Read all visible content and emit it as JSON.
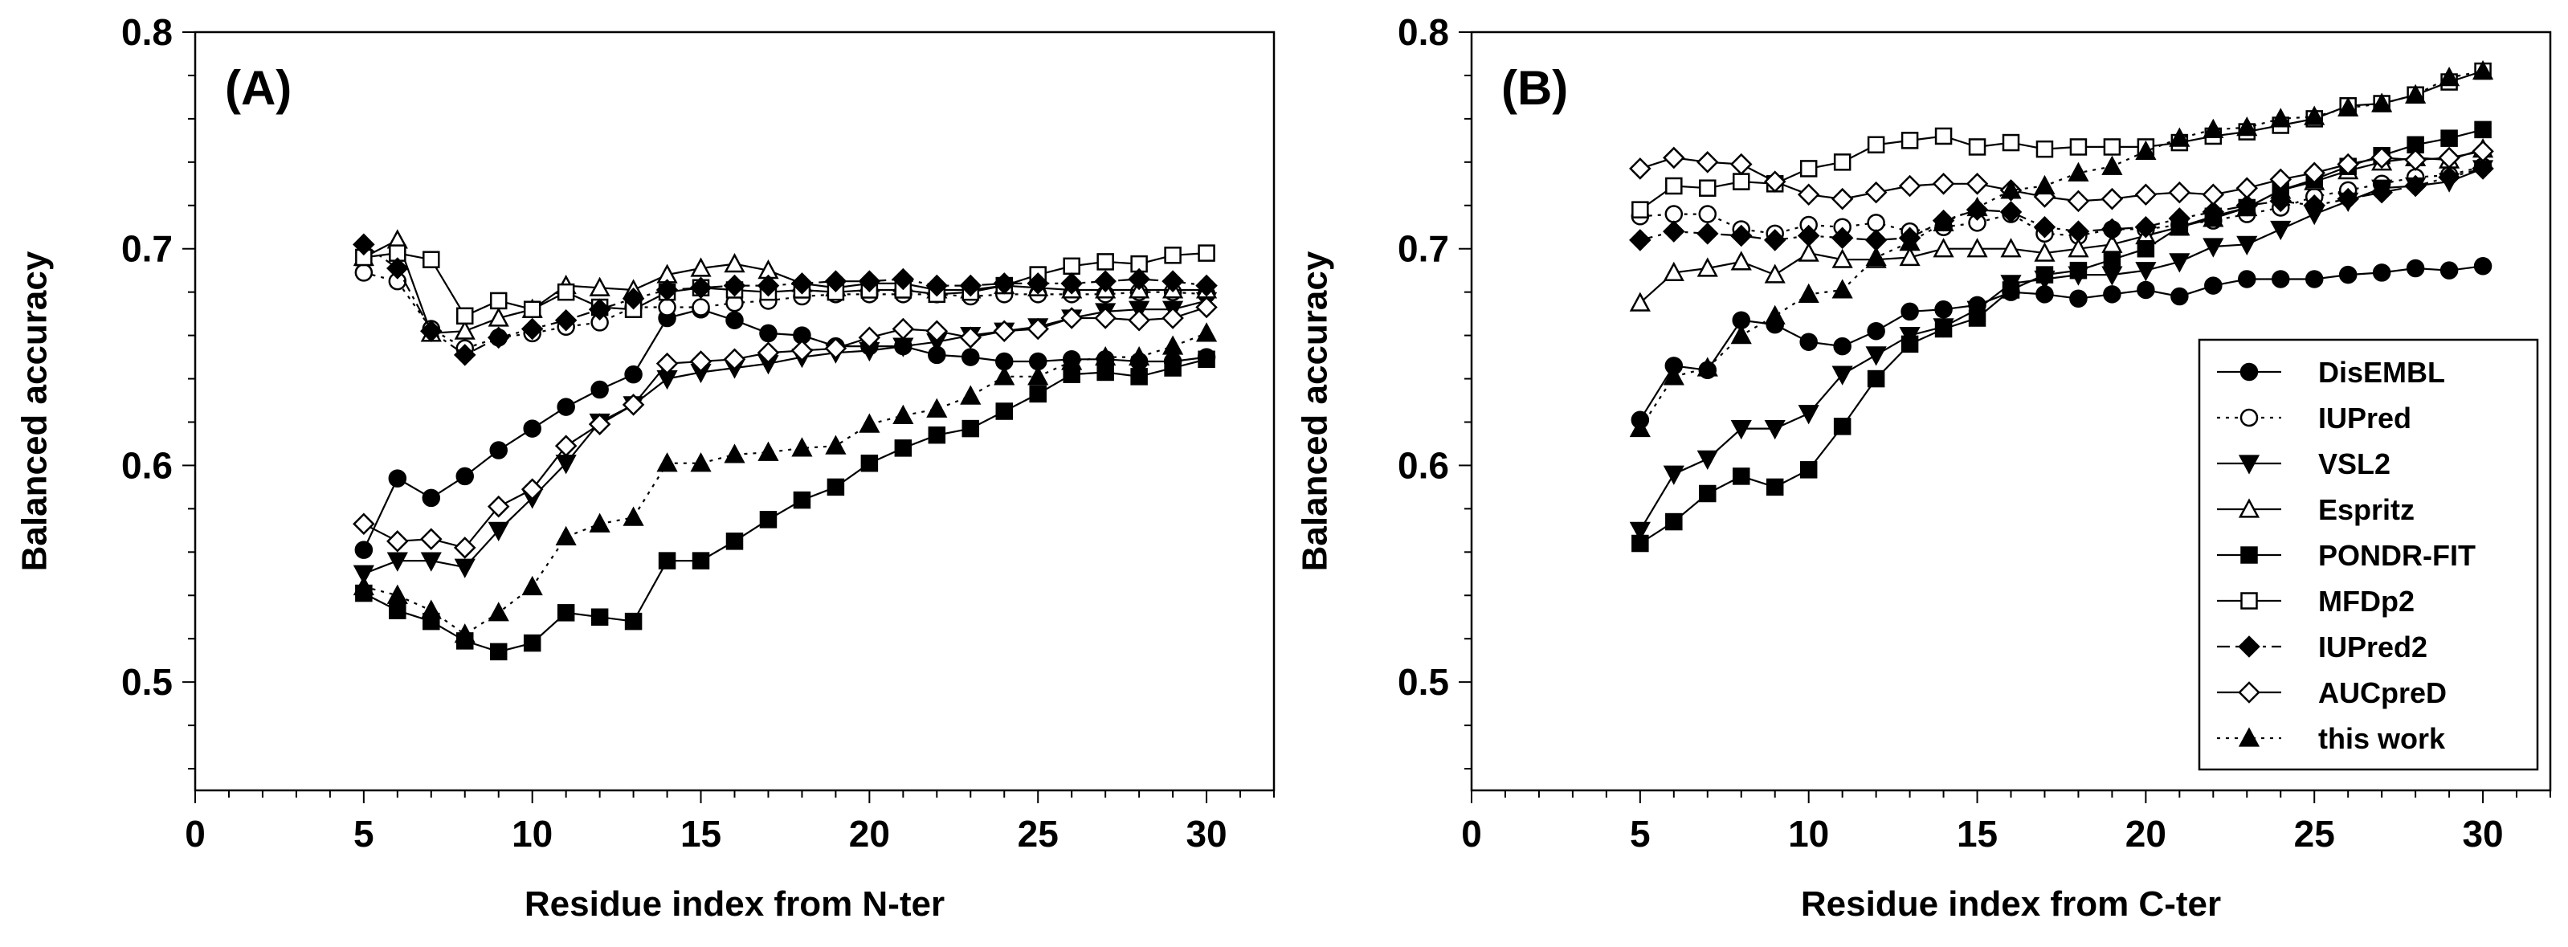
{
  "chart_data": [
    {
      "type": "line",
      "panel_label": "(A)",
      "xlabel": "Residue index from N-ter",
      "ylabel": "Balanced accuracy",
      "xlim": [
        0,
        32
      ],
      "ylim": [
        0.45,
        0.8
      ],
      "x_ticks": [
        "0",
        "5",
        "10",
        "15",
        "20",
        "25",
        "30"
      ],
      "y_ticks": [
        "0.5",
        "0.6",
        "0.7",
        "0.8"
      ],
      "grid": false,
      "x": [
        5,
        6,
        7,
        8,
        9,
        10,
        11,
        12,
        13,
        14,
        15,
        16,
        17,
        18,
        19,
        20,
        21,
        22,
        23,
        24,
        25,
        26,
        27,
        28,
        29,
        30
      ],
      "series": [
        {
          "name": "DisEMBL",
          "values": [
            0.561,
            0.594,
            0.585,
            0.595,
            0.607,
            0.617,
            0.627,
            0.635,
            0.642,
            0.668,
            0.672,
            0.667,
            0.661,
            0.66,
            0.655,
            0.655,
            0.655,
            0.651,
            0.65,
            0.648,
            0.648,
            0.649,
            0.649,
            0.648,
            0.648,
            0.65
          ]
        },
        {
          "name": "IUPred",
          "values": [
            0.689,
            0.685,
            0.663,
            0.654,
            0.659,
            0.661,
            0.664,
            0.666,
            0.673,
            0.673,
            0.673,
            0.675,
            0.676,
            0.678,
            0.679,
            0.679,
            0.679,
            0.679,
            0.678,
            0.679,
            0.679,
            0.679,
            0.679,
            0.68,
            0.68,
            0.679
          ]
        },
        {
          "name": "VSL2",
          "values": [
            0.55,
            0.556,
            0.556,
            0.553,
            0.57,
            0.585,
            0.601,
            0.62,
            0.628,
            0.64,
            0.643,
            0.645,
            0.647,
            0.65,
            0.652,
            0.653,
            0.655,
            0.657,
            0.66,
            0.662,
            0.664,
            0.668,
            0.671,
            0.672,
            0.672,
            0.676
          ]
        },
        {
          "name": "Espritz",
          "values": [
            0.696,
            0.704,
            0.661,
            0.662,
            0.668,
            0.672,
            0.683,
            0.682,
            0.681,
            0.688,
            0.691,
            0.693,
            0.69,
            0.684,
            0.682,
            0.684,
            0.684,
            0.681,
            0.681,
            0.683,
            0.682,
            0.681,
            0.681,
            0.681,
            0.681,
            0.681
          ]
        },
        {
          "name": "PONDR-FIT",
          "values": [
            0.541,
            0.533,
            0.528,
            0.519,
            0.514,
            0.518,
            0.532,
            0.53,
            0.528,
            0.556,
            0.556,
            0.565,
            0.575,
            0.584,
            0.59,
            0.601,
            0.608,
            0.614,
            0.617,
            0.625,
            0.633,
            0.642,
            0.643,
            0.641,
            0.645,
            0.649
          ]
        },
        {
          "name": "MFDp2",
          "values": [
            0.696,
            0.698,
            0.695,
            0.669,
            0.676,
            0.672,
            0.68,
            0.673,
            0.672,
            0.68,
            0.682,
            0.681,
            0.68,
            0.681,
            0.68,
            0.681,
            0.681,
            0.679,
            0.68,
            0.683,
            0.688,
            0.692,
            0.694,
            0.693,
            0.697,
            0.698
          ]
        },
        {
          "name": "IUPred2",
          "values": [
            0.702,
            0.691,
            0.662,
            0.651,
            0.659,
            0.663,
            0.667,
            0.672,
            0.677,
            0.681,
            0.682,
            0.683,
            0.683,
            0.684,
            0.685,
            0.685,
            0.686,
            0.683,
            0.683,
            0.684,
            0.684,
            0.684,
            0.685,
            0.686,
            0.685,
            0.683
          ]
        },
        {
          "name": "AUCpreD",
          "values": [
            0.573,
            0.565,
            0.566,
            0.562,
            0.581,
            0.589,
            0.609,
            0.619,
            0.628,
            0.647,
            0.648,
            0.649,
            0.652,
            0.653,
            0.654,
            0.659,
            0.663,
            0.662,
            0.659,
            0.662,
            0.663,
            0.668,
            0.668,
            0.667,
            0.668,
            0.673
          ]
        },
        {
          "name": "this work",
          "values": [
            0.544,
            0.54,
            0.533,
            0.522,
            0.532,
            0.544,
            0.567,
            0.573,
            0.576,
            0.601,
            0.601,
            0.605,
            0.606,
            0.608,
            0.609,
            0.619,
            0.623,
            0.626,
            0.632,
            0.641,
            0.641,
            0.648,
            0.65,
            0.65,
            0.655,
            0.661
          ]
        }
      ]
    },
    {
      "type": "line",
      "panel_label": "(B)",
      "xlabel": "Residue index from C-ter",
      "ylabel": "Balanced accuracy",
      "xlim": [
        0,
        32
      ],
      "ylim": [
        0.45,
        0.8
      ],
      "x_ticks": [
        "0",
        "5",
        "10",
        "15",
        "20",
        "25",
        "30"
      ],
      "y_ticks": [
        "0.5",
        "0.6",
        "0.7",
        "0.8"
      ],
      "grid": false,
      "legend_position": "bottom-right",
      "x": [
        5,
        6,
        7,
        8,
        9,
        10,
        11,
        12,
        13,
        14,
        15,
        16,
        17,
        18,
        19,
        20,
        21,
        22,
        23,
        24,
        25,
        26,
        27,
        28,
        29,
        30
      ],
      "series": [
        {
          "name": "DisEMBL",
          "values": [
            0.621,
            0.646,
            0.644,
            0.667,
            0.665,
            0.657,
            0.655,
            0.662,
            0.671,
            0.672,
            0.674,
            0.68,
            0.679,
            0.677,
            0.679,
            0.681,
            0.678,
            0.683,
            0.686,
            0.686,
            0.686,
            0.688,
            0.689,
            0.691,
            0.69,
            0.692
          ]
        },
        {
          "name": "IUPred",
          "values": [
            0.715,
            0.716,
            0.716,
            0.709,
            0.707,
            0.711,
            0.71,
            0.712,
            0.708,
            0.71,
            0.712,
            0.716,
            0.707,
            0.706,
            0.709,
            0.709,
            0.711,
            0.713,
            0.716,
            0.719,
            0.724,
            0.727,
            0.73,
            0.733,
            0.734,
            0.738
          ]
        },
        {
          "name": "VSL2",
          "values": [
            0.57,
            0.596,
            0.603,
            0.617,
            0.617,
            0.624,
            0.642,
            0.651,
            0.66,
            0.664,
            0.672,
            0.684,
            0.686,
            0.688,
            0.688,
            0.69,
            0.694,
            0.701,
            0.702,
            0.709,
            0.716,
            0.722,
            0.728,
            0.729,
            0.731,
            0.737
          ]
        },
        {
          "name": "Espritz",
          "values": [
            0.675,
            0.689,
            0.691,
            0.694,
            0.688,
            0.698,
            0.695,
            0.695,
            0.696,
            0.7,
            0.7,
            0.7,
            0.698,
            0.7,
            0.702,
            0.706,
            0.71,
            0.714,
            0.719,
            0.727,
            0.731,
            0.736,
            0.74,
            0.742,
            0.741,
            0.746
          ]
        },
        {
          "name": "PONDR-FIT",
          "values": [
            0.564,
            0.574,
            0.587,
            0.595,
            0.59,
            0.598,
            0.618,
            0.64,
            0.656,
            0.663,
            0.668,
            0.681,
            0.688,
            0.69,
            0.695,
            0.7,
            0.71,
            0.715,
            0.719,
            0.727,
            0.732,
            0.738,
            0.743,
            0.748,
            0.751,
            0.755
          ]
        },
        {
          "name": "MFDp2",
          "values": [
            0.718,
            0.729,
            0.728,
            0.731,
            0.73,
            0.737,
            0.74,
            0.748,
            0.75,
            0.752,
            0.747,
            0.749,
            0.746,
            0.747,
            0.747,
            0.747,
            0.749,
            0.752,
            0.754,
            0.757,
            0.76,
            0.766,
            0.767,
            0.771,
            0.777,
            0.782
          ]
        },
        {
          "name": "IUPred2",
          "values": [
            0.704,
            0.708,
            0.707,
            0.706,
            0.704,
            0.706,
            0.705,
            0.704,
            0.705,
            0.713,
            0.718,
            0.717,
            0.71,
            0.708,
            0.709,
            0.71,
            0.714,
            0.717,
            0.72,
            0.722,
            0.72,
            0.723,
            0.726,
            0.729,
            0.733,
            0.737
          ]
        },
        {
          "name": "AUCpreD",
          "values": [
            0.737,
            0.742,
            0.74,
            0.739,
            0.731,
            0.725,
            0.723,
            0.726,
            0.729,
            0.73,
            0.73,
            0.727,
            0.724,
            0.722,
            0.723,
            0.725,
            0.726,
            0.725,
            0.728,
            0.732,
            0.735,
            0.739,
            0.742,
            0.741,
            0.742,
            0.745
          ]
        },
        {
          "name": "this work",
          "values": [
            0.617,
            0.641,
            0.645,
            0.66,
            0.669,
            0.679,
            0.681,
            0.696,
            0.703,
            0.712,
            0.719,
            0.727,
            0.729,
            0.735,
            0.738,
            0.745,
            0.751,
            0.755,
            0.756,
            0.76,
            0.761,
            0.765,
            0.767,
            0.771,
            0.779,
            0.782
          ]
        }
      ]
    }
  ],
  "styles": {
    "DisEMBL": {
      "marker": "circle",
      "fill": "#000000",
      "dash": "solid"
    },
    "IUPred": {
      "marker": "circle",
      "fill": "#ffffff",
      "dash": "dotted"
    },
    "VSL2": {
      "marker": "triangle-down",
      "fill": "#000000",
      "dash": "solid"
    },
    "Espritz": {
      "marker": "triangle-up",
      "fill": "#ffffff",
      "dash": "solid"
    },
    "PONDR-FIT": {
      "marker": "square",
      "fill": "#000000",
      "dash": "solid"
    },
    "MFDp2": {
      "marker": "square",
      "fill": "#ffffff",
      "dash": "solid"
    },
    "IUPred2": {
      "marker": "diamond",
      "fill": "#000000",
      "dash": "dashdot"
    },
    "AUCpreD": {
      "marker": "diamond",
      "fill": "#ffffff",
      "dash": "solid"
    },
    "this work": {
      "marker": "triangle-up",
      "fill": "#000000",
      "dash": "dotted"
    }
  },
  "colors": {
    "line": "#000000",
    "background": "#ffffff"
  }
}
